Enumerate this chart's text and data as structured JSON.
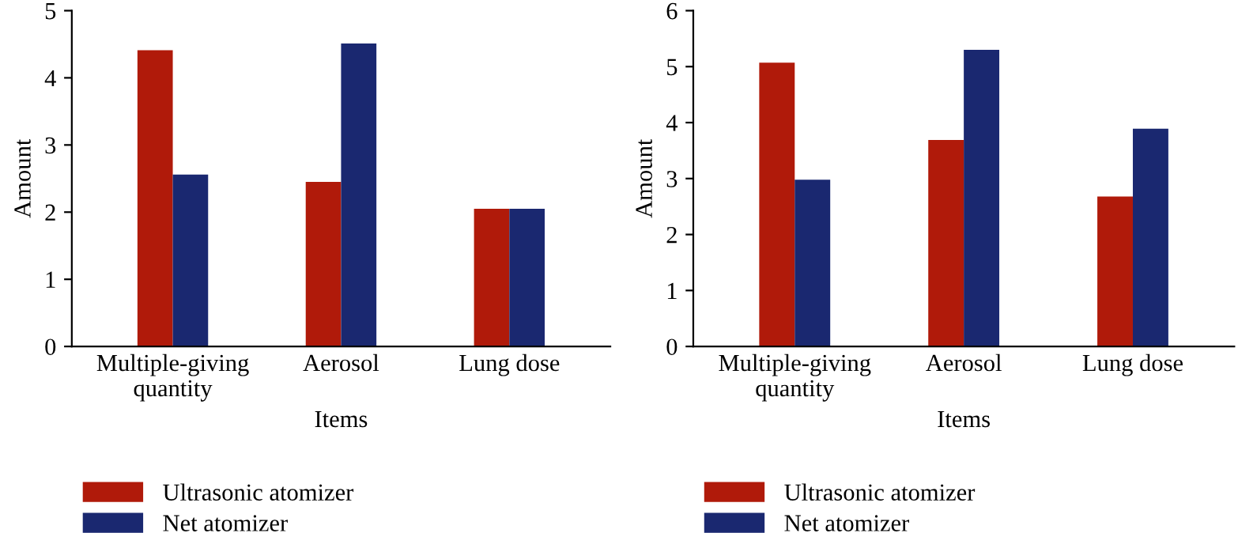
{
  "chart_data": [
    {
      "type": "bar",
      "categories": [
        "Multiple-giving\nquantity",
        "Aerosol",
        "Lung dose"
      ],
      "xlabel": "Items",
      "ylabel": "Amount",
      "ylim": [
        0,
        5
      ],
      "yticks": [
        0,
        1,
        2,
        3,
        4,
        5
      ],
      "legend": "bottom left",
      "series": [
        {
          "name": "Ultrasonic atomizer",
          "color": "#b01a0a",
          "values": [
            4.41,
            2.45,
            2.05
          ]
        },
        {
          "name": "Net atomizer",
          "color": "#1a2870",
          "values": [
            2.56,
            4.51,
            2.05
          ]
        }
      ]
    },
    {
      "type": "bar",
      "categories": [
        "Multiple-giving\nquantity",
        "Aerosol",
        "Lung dose"
      ],
      "xlabel": "Items",
      "ylabel": "Amount",
      "ylim": [
        0,
        6
      ],
      "yticks": [
        0,
        1,
        2,
        3,
        4,
        5,
        6
      ],
      "legend": "bottom left",
      "series": [
        {
          "name": "Ultrasonic atomizer",
          "color": "#b01a0a",
          "values": [
            5.07,
            3.69,
            2.68
          ]
        },
        {
          "name": "Net atomizer",
          "color": "#1a2870",
          "values": [
            2.98,
            5.3,
            3.89
          ]
        }
      ]
    }
  ]
}
